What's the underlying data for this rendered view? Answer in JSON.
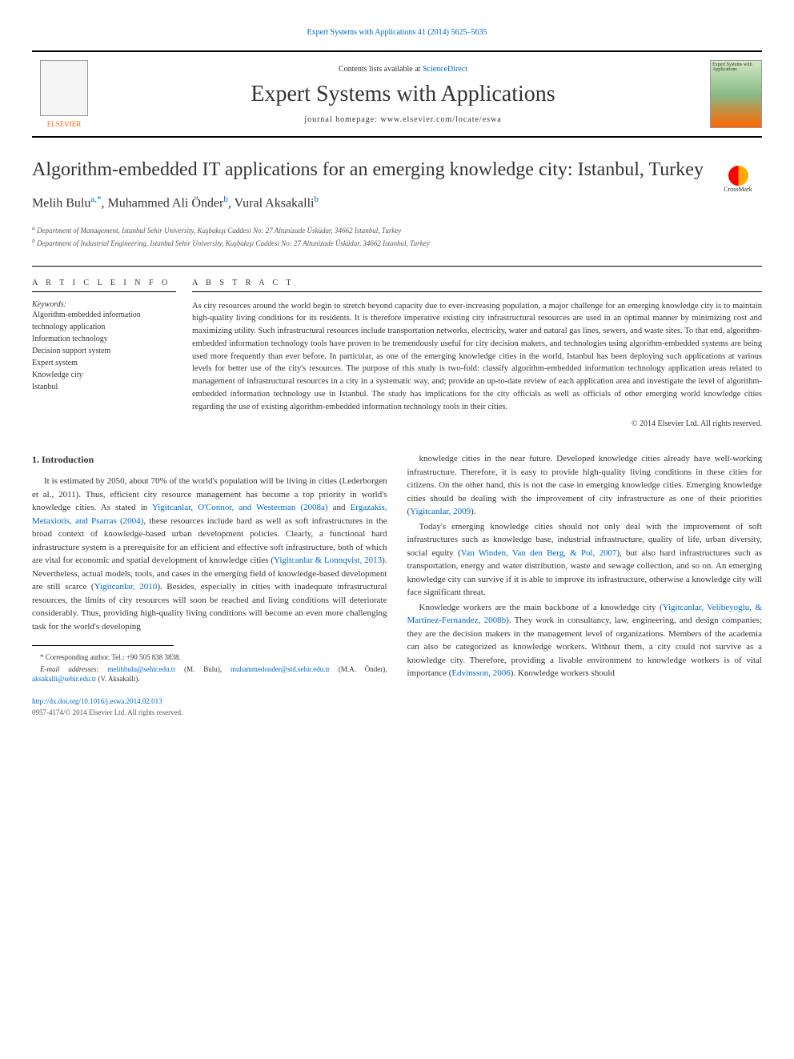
{
  "top": {
    "citation_link": "Expert Systems with Applications 41 (2014) 5625–5635"
  },
  "header": {
    "elsevier_label": "ELSEVIER",
    "contents_prefix": "Contents lists available at ",
    "contents_link": "ScienceDirect",
    "journal_name": "Expert Systems with Applications",
    "homepage_label": "journal homepage: www.elsevier.com/locate/eswa",
    "cover_text": "Expert Systems with Applications"
  },
  "crossmark": {
    "label": "CrossMark"
  },
  "article": {
    "title": "Algorithm-embedded IT applications for an emerging knowledge city: Istanbul, Turkey",
    "authors_html_parts": {
      "a1_name": "Melih Bulu",
      "a1_sup": "a,",
      "a1_corr": "*",
      "sep1": ", ",
      "a2_name": "Muhammed Ali Önder",
      "a2_sup": "b",
      "sep2": ", ",
      "a3_name": "Vural Aksakalli",
      "a3_sup": "b"
    },
    "affiliations": {
      "a": "Department of Management, Istanbul Sehir University, Kuşbakışı Caddesi No: 27 Altunizade Üsküdar, 34662 Istanbul, Turkey",
      "b": "Department of Industrial Engineering, Istanbul Sehir University, Kuşbakışı Caddesi No: 27 Altunizade Üsküdar, 34662 Istanbul, Turkey"
    }
  },
  "info": {
    "heading": "A R T I C L E   I N F O",
    "keywords_label": "Keywords:",
    "keywords": [
      "Algorithm-embedded information technology application",
      "Information technology",
      "Decision support system",
      "Expert system",
      "Knowledge city",
      "Istanbul"
    ]
  },
  "abstract": {
    "heading": "A B S T R A C T",
    "text": "As city resources around the world begin to stretch beyond capacity due to ever-increasing population, a major challenge for an emerging knowledge city is to maintain high-quality living conditions for its residents. It is therefore imperative existing city infrastructural resources are used in an optimal manner by minimizing cost and maximizing utility. Such infrastructural resources include transportation networks, electricity, water and natural gas lines, sewers, and waste sites. To that end, algorithm-embedded information technology tools have proven to be tremendously useful for city decision makers, and technologies using algorithm-embedded systems are being used more frequently than ever before. In particular, as one of the emerging knowledge cities in the world, Istanbul has been deploying such applications at various levels for better use of the city's resources. The purpose of this study is two-fold: classify algorithm-embedded information technology application areas related to management of infrastructural resources in a city in a systematic way, and; provide an up-to-date review of each application area and investigate the level of algorithm-embedded information technology use in Istanbul. The study has implications for the city officials as well as officials of other emerging world knowledge cities regarding the use of existing algorithm-embedded information technology tools in their cities.",
    "copyright": "© 2014 Elsevier Ltd. All rights reserved."
  },
  "body": {
    "section_heading": "1. Introduction",
    "col1_p1_prefix": "It is estimated by 2050, about 70% of the world's population will be living in cities (Lederborgen et al., 2011). Thus, efficient city resource management has become a top priority in world's knowledge cities. As stated in ",
    "col1_ref1": "Yigitcanlar, O'Connor, and Westerman (2008a)",
    "col1_mid1": " and ",
    "col1_ref2": "Ergazakis, Metaxiotis, and Psarras (2004)",
    "col1_mid2": ", these resources include hard as well as soft infrastructures in the broad context of knowledge-based urban development policies. Clearly, a functional hard infrastructure system is a prerequisite for an efficient and effective soft infrastructure, both of which are vital for economic and spatial development of knowledge cities (",
    "col1_ref3": "Yigitcanlar & Lonnqvist, 2013",
    "col1_mid3": "). Nevertheless, actual models, tools, and cases in the emerging field of knowledge-based development are still scarce (",
    "col1_ref4": "Yigitcanlar, 2010",
    "col1_end": "). Besides, especially in cities with inadequate infrastructural resources, the limits of city resources will soon be reached and living conditions will deteriorate considerably. Thus, providing high-quality living conditions will become an even more challenging task for the world's developing",
    "col2_p1_prefix": "knowledge cities in the near future. Developed knowledge cities already have well-working infrastructure. Therefore, it is easy to provide high-quality living conditions in these cities for citizens. On the other hand, this is not the case in emerging knowledge cities. Emerging knowledge cities should be dealing with the improvement of city infrastructure as one of their priorities (",
    "col2_ref1": "Yigitcanlar, 2009",
    "col2_p1_end": ").",
    "col2_p2_prefix": "Today's emerging knowledge cities should not only deal with the improvement of soft infrastructures such as knowledge base, industrial infrastructure, quality of life, urban diversity, social equity (",
    "col2_ref2": "Van Winden, Van den Berg, & Pol, 2007",
    "col2_p2_end": "), but also hard infrastructures such as transportation, energy and water distribution, waste and sewage collection, and so on. An emerging knowledge city can survive if it is able to improve its infrastructure, otherwise a knowledge city will face significant threat.",
    "col2_p3_prefix": "Knowledge workers are the main backbone of a knowledge city (",
    "col2_ref3": "Yigitcanlar, Velibeyoglu, & Martinez-Fernandez, 2008b",
    "col2_p3_mid": "). They work in consultancy, law, engineering, and design companies; they are the decision makers in the management level of organizations. Members of the academia can also be categorized as knowledge workers. Without them, a city could not survive as a knowledge city. Therefore, providing a livable environment to knowledge workers is of vital importance (",
    "col2_ref4": "Edvinsson, 2006",
    "col2_p3_end": "). Knowledge workers should"
  },
  "footnotes": {
    "corr_label": "* Corresponding author. Tel.: +90 505 838 3838.",
    "email_label": "E-mail addresses: ",
    "e1": "melihbulu@sehir.edu.tr",
    "e1_paren": " (M. Bulu), ",
    "e2": "muhammedonder@std.sehir.edu.tr",
    "e2_paren": " (M.A. Önder), ",
    "e3": "aksakalli@sehir.edu.tr",
    "e3_paren": " (V. Aksakalli)."
  },
  "footer": {
    "doi": "http://dx.doi.org/10.1016/j.eswa.2014.02.013",
    "issn_copyright": "0957-4174/© 2014 Elsevier Ltd. All rights reserved."
  },
  "colors": {
    "link": "#0066cc",
    "elsevier_orange": "#ff6600",
    "text": "#333333",
    "background": "#ffffff"
  },
  "typography": {
    "title_fontsize": 24,
    "journal_fontsize": 28,
    "authors_fontsize": 16,
    "body_fontsize": 11,
    "abstract_fontsize": 10.5,
    "footnote_fontsize": 9
  }
}
